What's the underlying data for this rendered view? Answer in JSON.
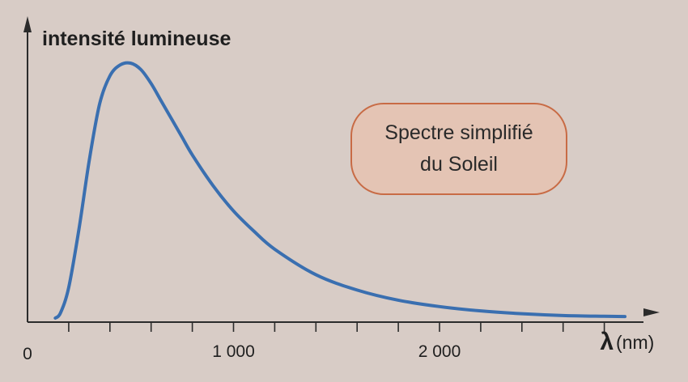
{
  "chart_data": {
    "type": "line",
    "ylabel": "intensité lumineuse",
    "xlabel_symbol": "λ",
    "xlabel_unit": "(nm)",
    "x_origin_label": "0",
    "xlim": [
      0,
      2900
    ],
    "ylim": [
      0,
      1.0
    ],
    "major_ticks": [
      {
        "x": 1000,
        "label": "1 000"
      },
      {
        "x": 2000,
        "label": "2 000"
      }
    ],
    "minor_tick_step": 200,
    "annotation": {
      "line1": "Spectre simplifié",
      "line2": "du Soleil"
    },
    "series": [
      {
        "color": "#3a6fb0",
        "x": [
          135,
          160,
          200,
          250,
          300,
          350,
          400,
          450,
          500,
          550,
          600,
          650,
          700,
          750,
          800,
          900,
          1000,
          1100,
          1200,
          1400,
          1600,
          1800,
          2000,
          2200,
          2400,
          2600,
          2800,
          2900
        ],
        "y": [
          0.0,
          0.02,
          0.12,
          0.35,
          0.62,
          0.84,
          0.95,
          0.993,
          1.0,
          0.975,
          0.92,
          0.85,
          0.78,
          0.71,
          0.64,
          0.52,
          0.42,
          0.34,
          0.27,
          0.17,
          0.11,
          0.07,
          0.045,
          0.028,
          0.017,
          0.01,
          0.007,
          0.006
        ]
      }
    ],
    "colors": {
      "axis": "#2b2b2b",
      "callout_fill": "#e4c4b4",
      "callout_border": "#c86b45"
    }
  }
}
